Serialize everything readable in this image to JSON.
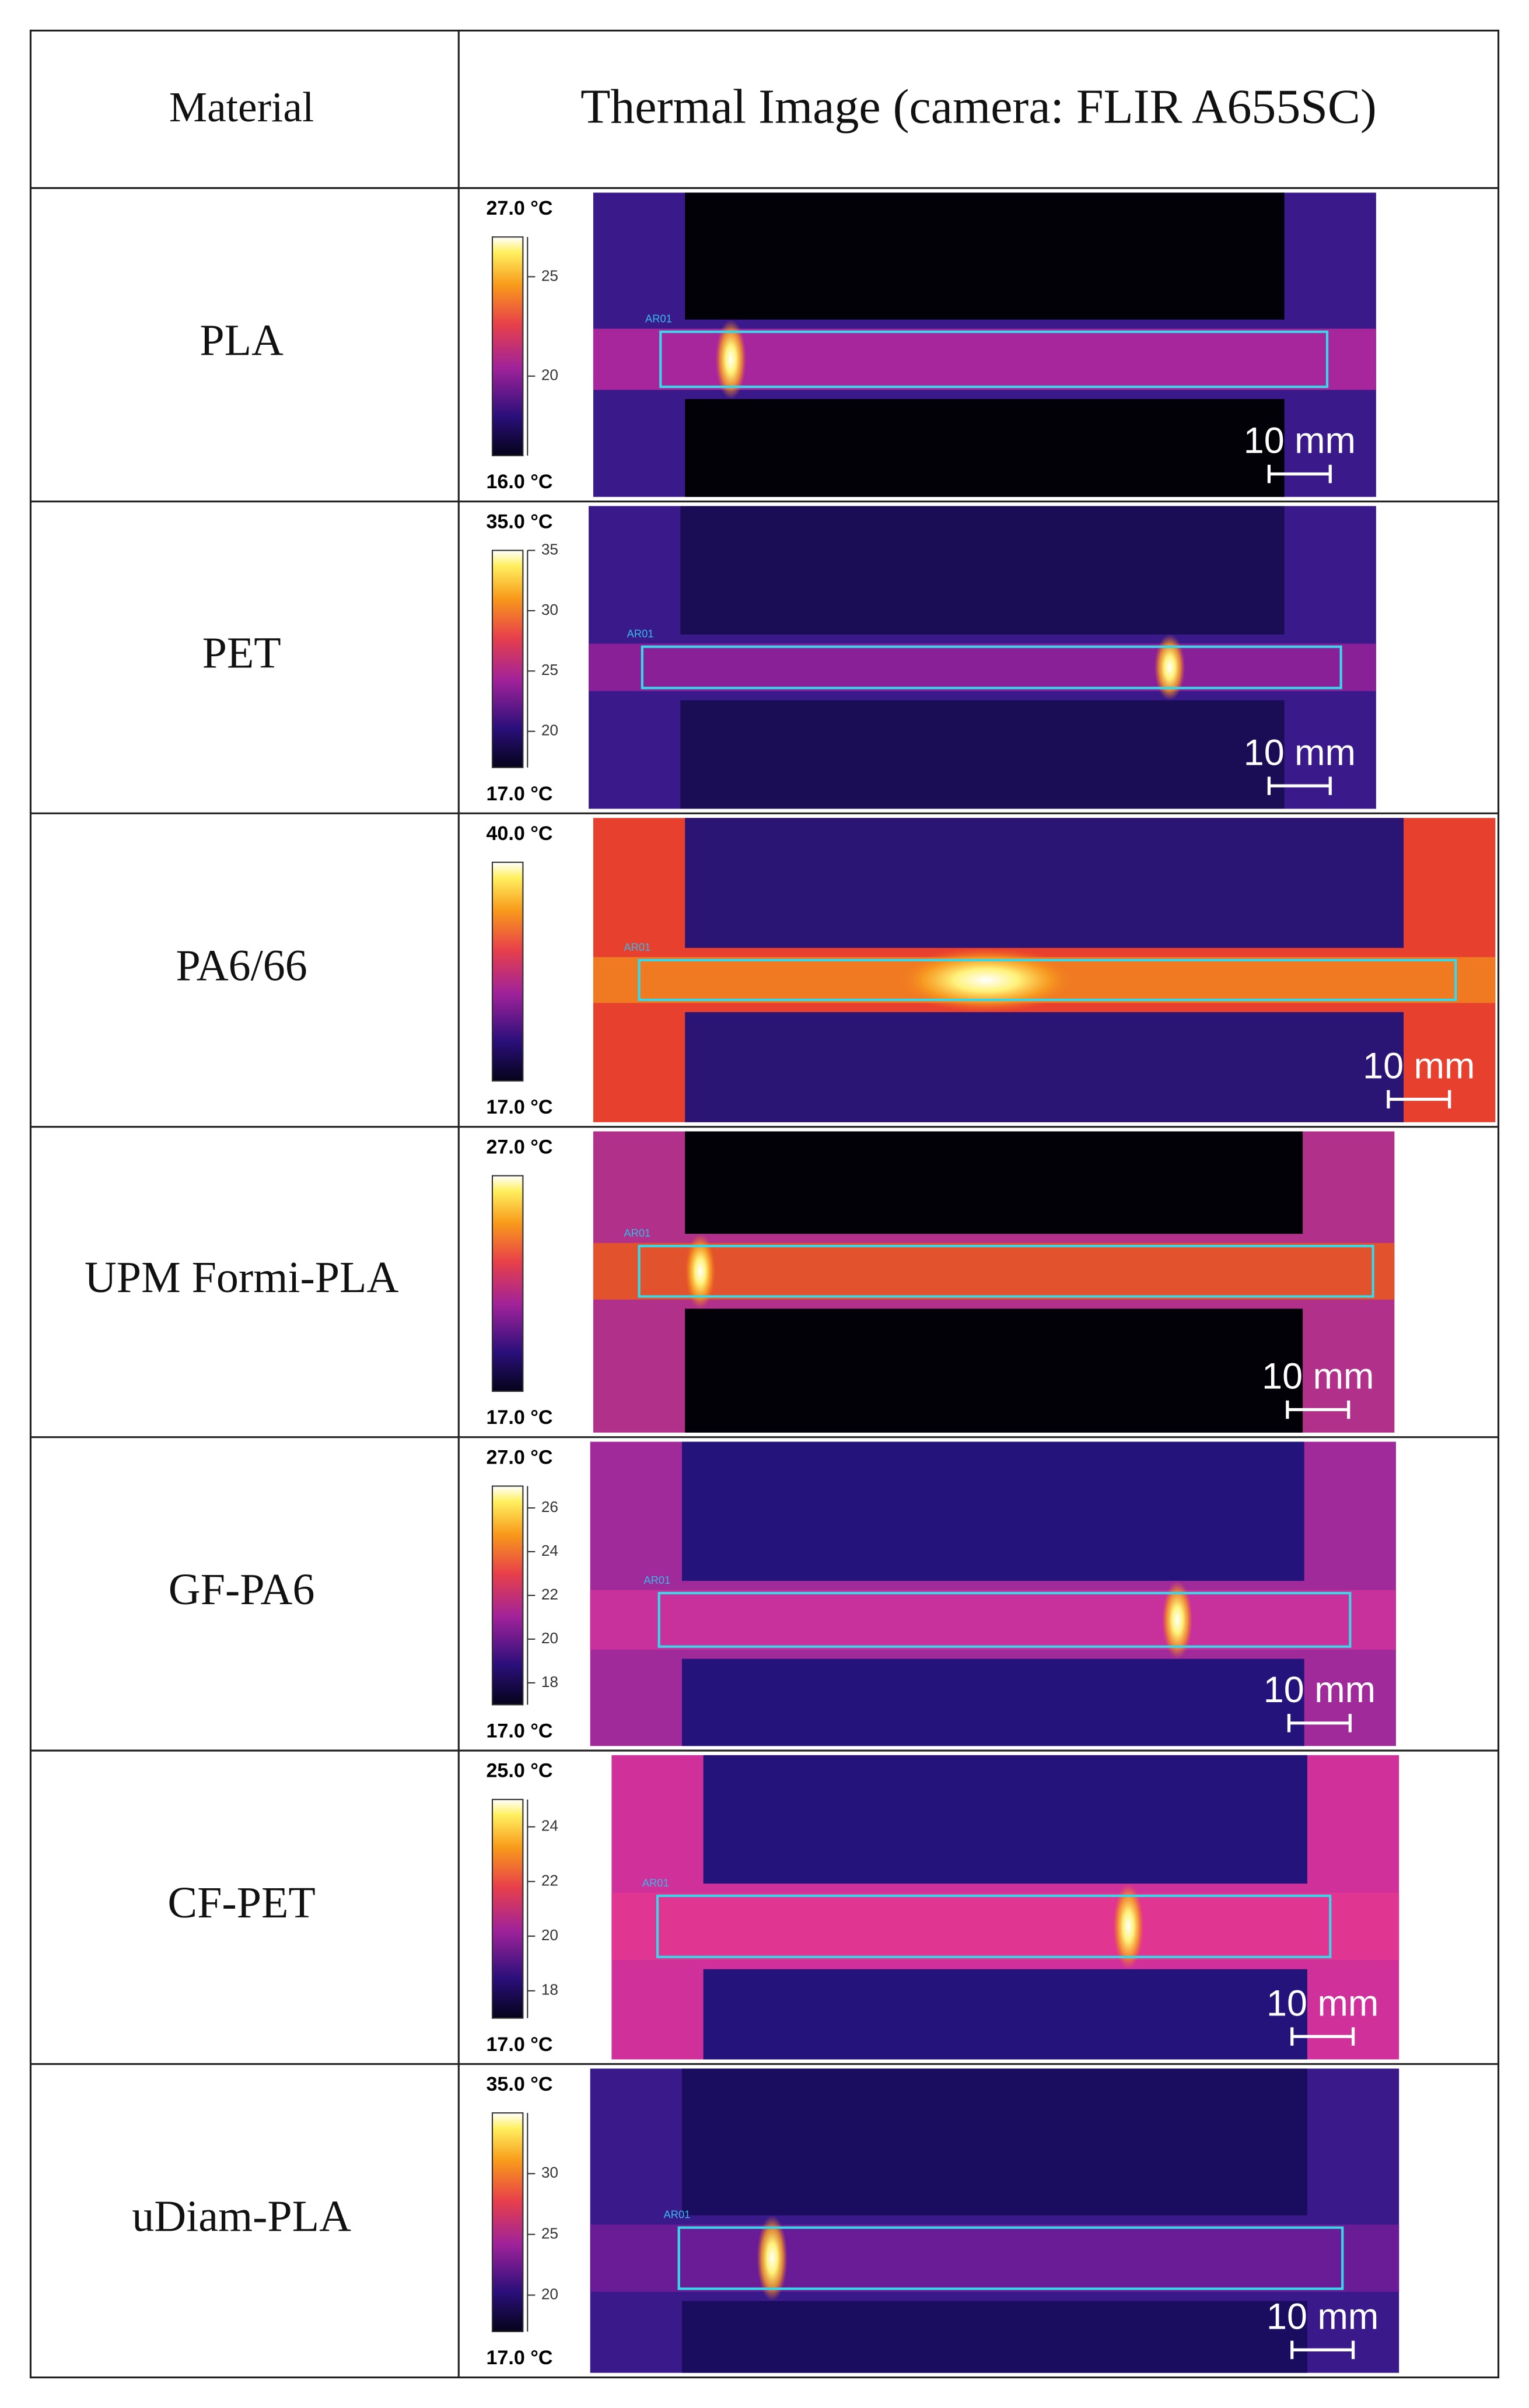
{
  "table": {
    "header": [
      "Material",
      "Thermal Image (camera: FLIR A655SC)"
    ],
    "rows": [
      {
        "material": "PLA",
        "max": {
          "value": 27,
          "label": "27.0 °C"
        },
        "min": {
          "value": 16,
          "label": "16.0 °C"
        },
        "ticks": [
          25,
          20
        ],
        "roi": "AR01",
        "scale": "10 mm"
      },
      {
        "material": "PET",
        "max": {
          "value": 35,
          "label": "35.0 °C"
        },
        "min": {
          "value": 17,
          "label": "17.0 °C"
        },
        "ticks": [
          35,
          30,
          25,
          20
        ],
        "roi": "AR01",
        "scale": "10 mm"
      },
      {
        "material": "PA6/66",
        "max": {
          "value": 40,
          "label": "40.0 °C"
        },
        "min": {
          "value": 17,
          "label": "17.0 °C"
        },
        "ticks": [],
        "roi": "AR01",
        "scale": "10 mm"
      },
      {
        "material": "UPM Formi-PLA",
        "max": {
          "value": 27,
          "label": "27.0 °C"
        },
        "min": {
          "value": 17,
          "label": "17.0 °C"
        },
        "ticks": [],
        "roi": "AR01",
        "scale": "10 mm"
      },
      {
        "material": "GF-PA6",
        "max": {
          "value": 27,
          "label": "27.0 °C"
        },
        "min": {
          "value": 17,
          "label": "17.0 °C"
        },
        "ticks": [
          26,
          24,
          22,
          20,
          18
        ],
        "roi": "AR01",
        "scale": "10 mm"
      },
      {
        "material": "CF-PET",
        "max": {
          "value": 25,
          "label": "25.0 °C"
        },
        "min": {
          "value": 17,
          "label": "17.0 °C"
        },
        "ticks": [
          24,
          22,
          20,
          18
        ],
        "roi": "AR01",
        "scale": "10 mm"
      },
      {
        "material": "uDiam-PLA",
        "max": {
          "value": 35,
          "label": "35.0 °C"
        },
        "min": {
          "value": 17,
          "label": "17.0 °C"
        },
        "ticks": [
          30,
          25,
          20
        ],
        "roi": "AR01",
        "scale": "10 mm"
      }
    ]
  }
}
